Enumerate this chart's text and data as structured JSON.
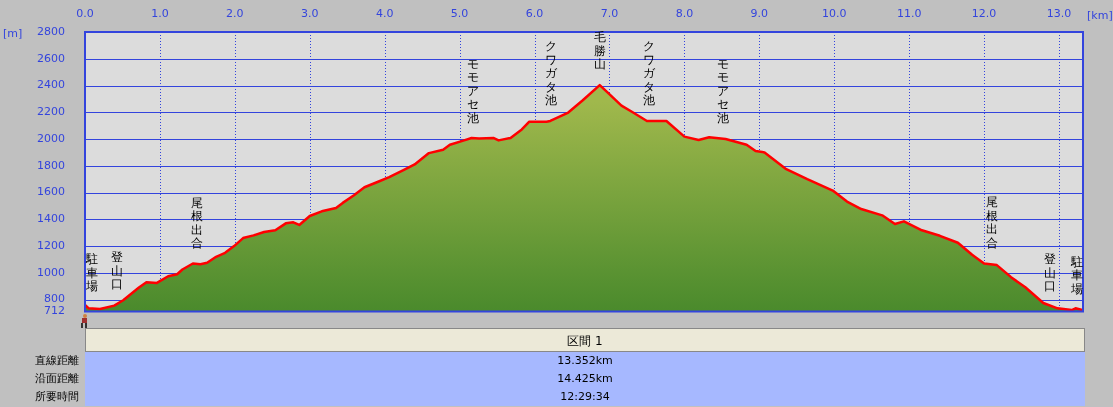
{
  "chart_data": {
    "type": "area",
    "xlabel": "[km]",
    "ylabel": "[m]",
    "xlim": [
      0,
      13.32
    ],
    "ylim": [
      712,
      2800
    ],
    "xticks": [
      {
        "value": 0,
        "label": "0.0"
      },
      {
        "value": 1,
        "label": "1.0"
      },
      {
        "value": 2,
        "label": "2.0"
      },
      {
        "value": 3,
        "label": "3.0"
      },
      {
        "value": 4,
        "label": "4.0"
      },
      {
        "value": 5,
        "label": "5.0"
      },
      {
        "value": 6,
        "label": "6.0"
      },
      {
        "value": 7,
        "label": "7.0"
      },
      {
        "value": 8,
        "label": "8.0"
      },
      {
        "value": 9,
        "label": "9.0"
      },
      {
        "value": 10,
        "label": "10.0"
      },
      {
        "value": 11,
        "label": "11.0"
      },
      {
        "value": 12,
        "label": "12.0"
      },
      {
        "value": 13,
        "label": "13.0"
      }
    ],
    "yticks": [
      712,
      800,
      1000,
      1200,
      1400,
      1600,
      1800,
      2000,
      2200,
      2400,
      2600,
      2800
    ],
    "grid": true,
    "legend": false,
    "series": [
      {
        "color": "#ff0000",
        "x": [
          0,
          0.05,
          0.2,
          0.39,
          0.51,
          0.72,
          0.82,
          0.96,
          1.11,
          1.23,
          1.3,
          1.44,
          1.54,
          1.63,
          1.75,
          1.87,
          1.99,
          2.11,
          2.25,
          2.39,
          2.54,
          2.68,
          2.78,
          2.86,
          3.0,
          3.16,
          3.35,
          3.44,
          3.59,
          3.73,
          3.92,
          4.06,
          4.25,
          4.4,
          4.59,
          4.78,
          4.87,
          5.06,
          5.16,
          5.26,
          5.45,
          5.52,
          5.68,
          5.83,
          5.93,
          6.02,
          6.16,
          6.21,
          6.45,
          6.64,
          6.87,
          6.97,
          7.16,
          7.31,
          7.5,
          7.76,
          8.0,
          8.19,
          8.33,
          8.55,
          8.83,
          8.95,
          9.07,
          9.36,
          9.64,
          9.98,
          10.17,
          10.36,
          10.64,
          10.81,
          10.93,
          11.17,
          11.41,
          11.65,
          11.84,
          12.0,
          12.17,
          12.36,
          12.55,
          12.79,
          12.98,
          13.17,
          13.22,
          13.31
        ],
        "values": [
          760,
          735,
          730,
          755,
          795,
          890,
          930,
          925,
          975,
          990,
          1025,
          1070,
          1065,
          1075,
          1120,
          1150,
          1200,
          1260,
          1280,
          1305,
          1318,
          1370,
          1378,
          1358,
          1425,
          1460,
          1485,
          1523,
          1580,
          1640,
          1683,
          1715,
          1767,
          1810,
          1895,
          1920,
          1957,
          1990,
          2008,
          2005,
          2008,
          1990,
          2008,
          2072,
          2130,
          2130,
          2130,
          2135,
          2198,
          2288,
          2403,
          2350,
          2250,
          2200,
          2135,
          2135,
          2018,
          1993,
          2013,
          2000,
          1958,
          1910,
          1900,
          1775,
          1700,
          1615,
          1533,
          1477,
          1430,
          1365,
          1385,
          1318,
          1277,
          1225,
          1135,
          1070,
          1058,
          968,
          892,
          775,
          735,
          722,
          735,
          722
        ]
      }
    ],
    "annotations": [
      {
        "text": "駐車場",
        "x": 0.09,
        "y": 745
      },
      {
        "text": "登山口",
        "x": 0.43,
        "y": 760
      },
      {
        "text": "尾根出合",
        "x": 1.5,
        "y": 1065
      },
      {
        "text": "モモアセ池",
        "x": 5.18,
        "y": 2005
      },
      {
        "text": "クワガタ池",
        "x": 6.22,
        "y": 2135
      },
      {
        "text": "毛勝山",
        "x": 6.87,
        "y": 2403
      },
      {
        "text": "クワガタ池",
        "x": 7.53,
        "y": 2135
      },
      {
        "text": "モモアセ池",
        "x": 8.52,
        "y": 2005
      },
      {
        "text": "尾根出合",
        "x": 12.11,
        "y": 1070
      },
      {
        "text": "登山口",
        "x": 12.88,
        "y": 745
      },
      {
        "text": "駐車場",
        "x": 13.24,
        "y": 725
      },
      "区間 1",
      "直線距離",
      "13.352km",
      "沿面距離",
      "14.425km",
      "所要時間",
      "12:29:34"
    ]
  }
}
